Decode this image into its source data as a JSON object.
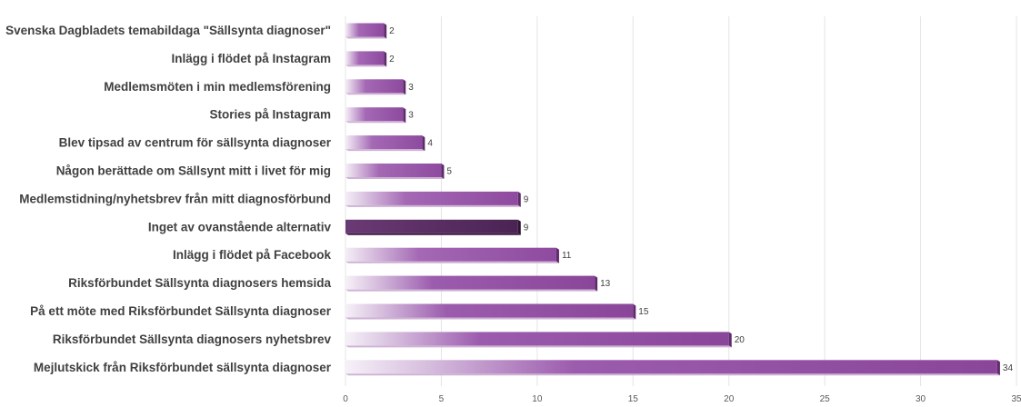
{
  "chart_data": {
    "type": "bar",
    "orientation": "horizontal",
    "categories": [
      "Svenska Dagbladets temabildaga \"Sällsynta diagnoser\"",
      "Inlägg i flödet på Instagram",
      "Medlemsmöten i min medlemsförening",
      "Stories på Instagram",
      "Blev tipsad av centrum för sällsynta diagnoser",
      "Någon berättade om Sällsynt mitt i livet för mig",
      "Medlemstidning/nyhetsbrev från mitt diagnosförbund",
      "Inget av ovanstående alternativ",
      "Inlägg i flödet på Facebook",
      "Riksförbundet Sällsynta diagnosers hemsida",
      "På ett möte med Riksförbundet Sällsynta diagnoser",
      "Riksförbundet Sällsynta diagnosers nyhetsbrev",
      "Mejlutskick från Riksförbundet sällsynta diagnoser"
    ],
    "values": [
      2,
      2,
      3,
      3,
      4,
      5,
      9,
      9,
      11,
      13,
      15,
      20,
      34
    ],
    "highlight_index": 7,
    "xlim": [
      0,
      35
    ],
    "xticks": [
      0,
      5,
      10,
      15,
      20,
      25,
      30,
      35
    ],
    "grid": true,
    "legend": "none",
    "colors": {
      "bar": "#8e4a9f",
      "bar_light": "#f4eef6",
      "bar_highlight": "#4e2756",
      "text": "#404040"
    }
  }
}
